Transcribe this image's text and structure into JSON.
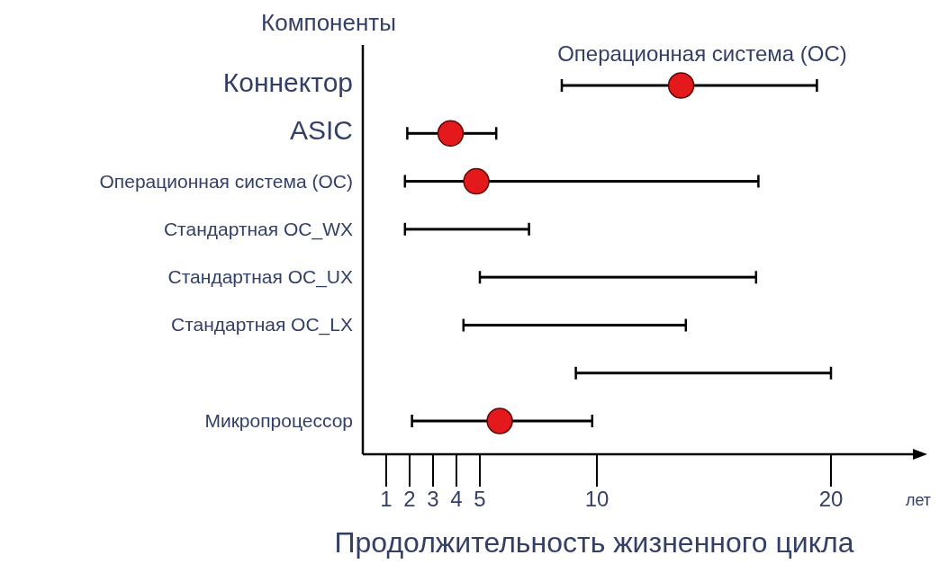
{
  "chart_data": {
    "type": "bar",
    "orientation": "horizontal",
    "ylabel": "Компоненты",
    "xlabel": "Продолжительность жизненного цикла",
    "annotations": [
      "Операционная система (ОС)",
      "лет"
    ],
    "categories": [
      "Коннектор",
      "ASIC",
      "Операционная система (ОС)",
      "Стандартная ОС_WX",
      "Стандартная ОС_UX",
      "Стандартная ОС_LX",
      null,
      "Микропроцессор"
    ],
    "xlim": [
      0,
      23.5
    ],
    "xticks": [
      1,
      2,
      3,
      4,
      5,
      10,
      20
    ],
    "grid": false,
    "marker": "circle",
    "series": [
      {
        "type": "bar",
        "color": "#000000",
        "base": [
          8.5,
          1.9,
          1.8,
          1.8,
          5.0,
          4.3,
          9.1,
          2.1
        ],
        "values": [
          10.9,
          3.8,
          15.1,
          5.3,
          11.8,
          9.5,
          10.9,
          7.7
        ]
      },
      {
        "type": "scatter",
        "color": "#e3191c",
        "values": [
          13.6,
          3.75,
          4.85,
          null,
          null,
          null,
          null,
          5.85
        ]
      }
    ]
  }
}
